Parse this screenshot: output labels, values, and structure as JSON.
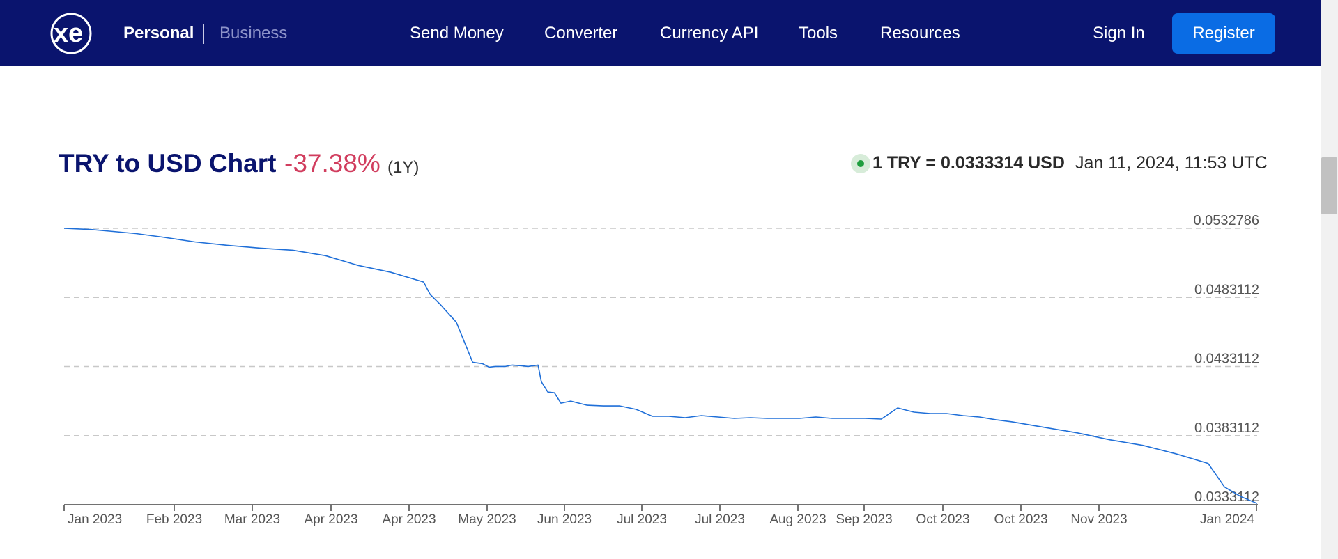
{
  "nav": {
    "logo": "xe",
    "personal": "Personal",
    "business": "Business",
    "links": [
      "Send Money",
      "Converter",
      "Currency API",
      "Tools",
      "Resources"
    ],
    "sign_in": "Sign In",
    "register": "Register"
  },
  "header": {
    "title": "TRY to USD Chart",
    "change": "-37.38%",
    "period": "(1Y)",
    "rate": "1 TRY = 0.0333314 USD",
    "timestamp": "Jan 11, 2024, 11:53 UTC"
  },
  "colors": {
    "nav_bg": "#0a146e",
    "accent": "#0a6ce4",
    "negative": "#d13d5e",
    "line": "#1f6fd8",
    "live": "#1e9e3e"
  },
  "chart_data": {
    "type": "line",
    "title": "TRY to USD Chart",
    "xlabel": "",
    "ylabel": "",
    "x_ticks": [
      "Jan 2023",
      "Feb 2023",
      "Mar 2023",
      "Apr 2023",
      "Apr 2023",
      "May 2023",
      "Jun 2023",
      "Jul 2023",
      "Jul 2023",
      "Aug 2023",
      "Sep 2023",
      "Oct 2023",
      "Oct 2023",
      "Nov 2023",
      "Jan 2024"
    ],
    "y_ticks": [
      "0.0532786",
      "0.0483112",
      "0.0433112",
      "0.0383112",
      "0.0333112"
    ],
    "ylim": [
      0.0333112,
      0.0532786
    ],
    "grid": true,
    "x": [
      0,
      8,
      15,
      22,
      30,
      40,
      50,
      60,
      70,
      80,
      90,
      100,
      110,
      112,
      115,
      120,
      125,
      128,
      130,
      132,
      135,
      137,
      140,
      142,
      145,
      146,
      148,
      150,
      152,
      155,
      160,
      165,
      170,
      175,
      180,
      185,
      190,
      195,
      200,
      205,
      210,
      215,
      220,
      225,
      230,
      235,
      240,
      245,
      250,
      255,
      260,
      265,
      270,
      275,
      280,
      285,
      290,
      300,
      310,
      320,
      330,
      340,
      350,
      355,
      360,
      365
    ],
    "y": [
      0.05328,
      0.0532,
      0.05305,
      0.0529,
      0.05265,
      0.0523,
      0.05205,
      0.05185,
      0.0517,
      0.0513,
      0.0506,
      0.0501,
      0.0494,
      0.0485,
      0.0478,
      0.0465,
      0.0436,
      0.0435,
      0.04325,
      0.0433,
      0.0433,
      0.0434,
      0.04335,
      0.0433,
      0.0434,
      0.0422,
      0.04145,
      0.0414,
      0.04065,
      0.0408,
      0.0405,
      0.04045,
      0.04045,
      0.0402,
      0.0397,
      0.0397,
      0.0396,
      0.03975,
      0.03965,
      0.03955,
      0.0396,
      0.03955,
      0.03955,
      0.03955,
      0.03965,
      0.03955,
      0.03955,
      0.03955,
      0.0395,
      0.0403,
      0.04,
      0.0399,
      0.0399,
      0.03975,
      0.03965,
      0.03945,
      0.0393,
      0.0389,
      0.0385,
      0.038,
      0.0376,
      0.037,
      0.0363,
      0.0346,
      0.0339,
      0.0334
    ]
  }
}
